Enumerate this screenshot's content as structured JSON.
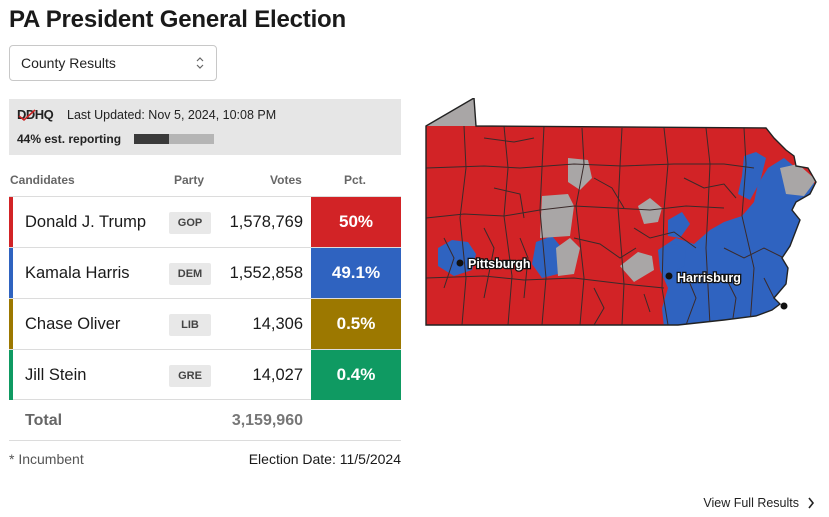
{
  "page": {
    "title": "PA President General Election"
  },
  "selector": {
    "value": "County Results"
  },
  "status": {
    "logo": "DDHQ",
    "last_updated": "Last Updated: Nov 5, 2024, 10:08 PM",
    "reporting": "44% est. reporting",
    "reporting_fraction": 0.44
  },
  "table": {
    "headers": {
      "candidates": "Candidates",
      "party": "Party",
      "votes": "Votes",
      "pct": "Pct."
    },
    "rows": [
      {
        "name": "Donald J. Trump",
        "party": "GOP",
        "votes": "1,578,769",
        "pct": "50%",
        "color": "#d22326"
      },
      {
        "name": "Kamala Harris",
        "party": "DEM",
        "votes": "1,552,858",
        "pct": "49.1%",
        "color": "#2f63c0"
      },
      {
        "name": "Chase Oliver",
        "party": "LIB",
        "votes": "14,306",
        "pct": "0.5%",
        "color": "#9c7800"
      },
      {
        "name": "Jill Stein",
        "party": "GRE",
        "votes": "14,027",
        "pct": "0.4%",
        "color": "#0f9a62"
      }
    ],
    "total_label": "Total",
    "total_value": "3,159,960",
    "incumbent_note": "* Incumbent",
    "election_date": "Election Date: 11/5/2024"
  },
  "map": {
    "cities": [
      "Pittsburgh",
      "Harrisburg"
    ],
    "colors": {
      "gop": "#d22326",
      "dem": "#2f63c0",
      "pending": "#a9a6a6",
      "border": "#3a2a2a"
    }
  },
  "footer": {
    "view_full": "View Full Results",
    "icon": "chevron-right-icon"
  }
}
